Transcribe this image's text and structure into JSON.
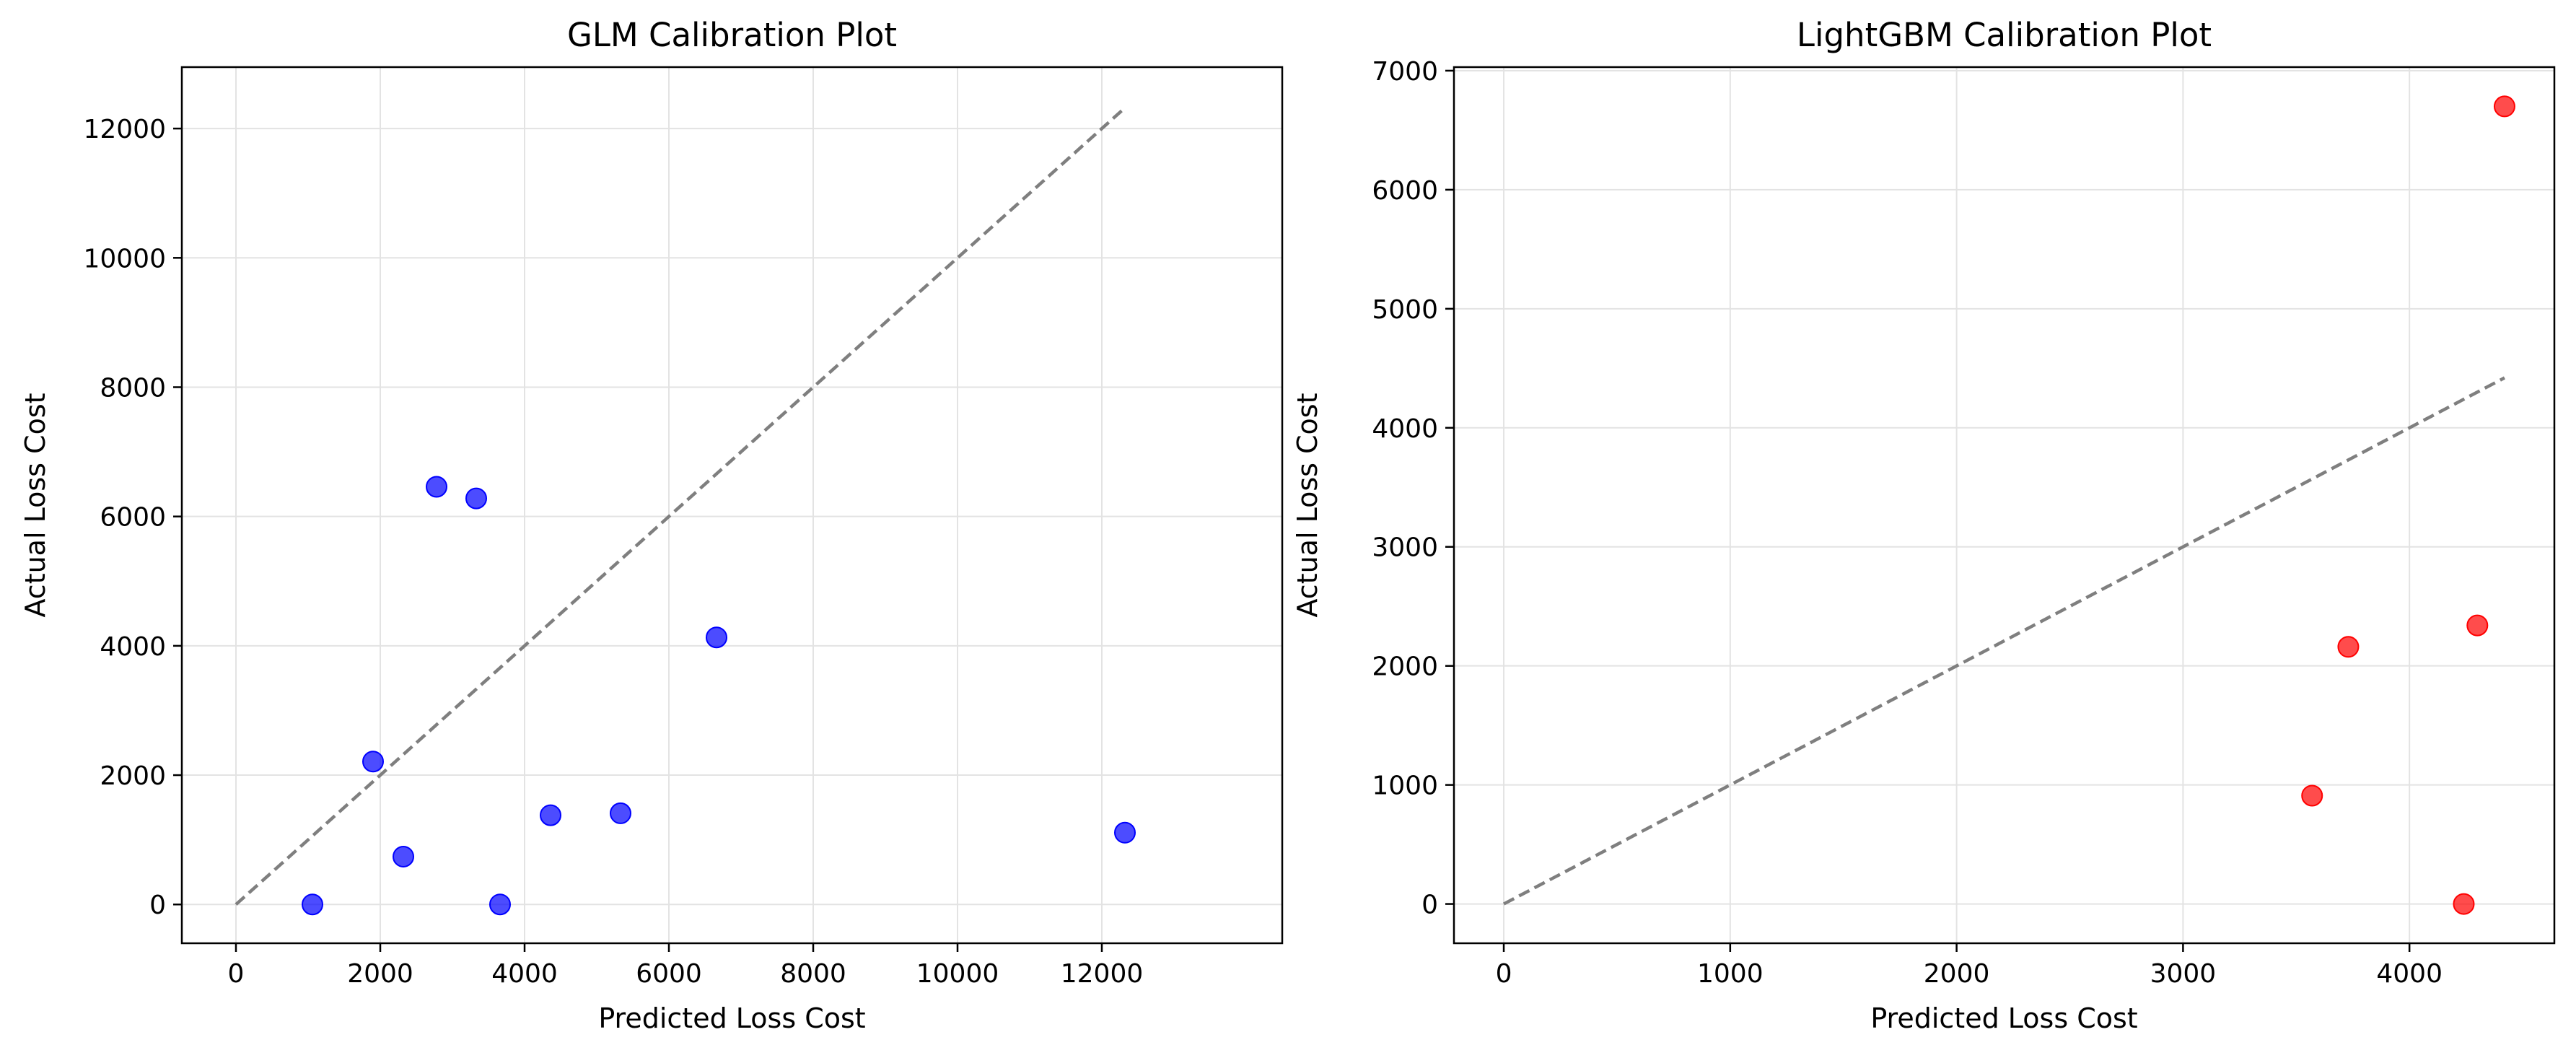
{
  "chart_data": [
    {
      "type": "scatter",
      "title": "GLM Calibration Plot",
      "xlabel": "Predicted Loss Cost",
      "ylabel": "Actual Loss Cost",
      "xlim": [
        -750,
        14500
      ],
      "ylim": [
        -600,
        12950
      ],
      "xticks": [
        0,
        2000,
        4000,
        6000,
        8000,
        10000,
        12000
      ],
      "yticks": [
        0,
        2000,
        4000,
        6000,
        8000,
        10000,
        12000
      ],
      "grid": true,
      "reference_line": {
        "x": [
          0,
          12320
        ],
        "y": [
          0,
          12320
        ]
      },
      "point_color": "#0000ff",
      "line_color": "#7f7f7f",
      "points": [
        {
          "x": 1060,
          "y": 0
        },
        {
          "x": 1900,
          "y": 2210
        },
        {
          "x": 2320,
          "y": 740
        },
        {
          "x": 2780,
          "y": 6460
        },
        {
          "x": 3330,
          "y": 6280
        },
        {
          "x": 3660,
          "y": 0
        },
        {
          "x": 4360,
          "y": 1380
        },
        {
          "x": 5330,
          "y": 1410
        },
        {
          "x": 6660,
          "y": 4130
        },
        {
          "x": 12320,
          "y": 1110
        }
      ]
    },
    {
      "type": "scatter",
      "title": "LightGBM Calibration Plot",
      "xlabel": "Predicted Loss Cost",
      "ylabel": "Actual Loss Cost",
      "xlim": [
        -220,
        4640
      ],
      "ylim": [
        -330,
        7030
      ],
      "xticks": [
        0,
        1000,
        2000,
        3000,
        4000
      ],
      "yticks": [
        0,
        1000,
        2000,
        3000,
        4000,
        5000,
        6000,
        7000
      ],
      "grid": true,
      "reference_line": {
        "x": [
          0,
          4420
        ],
        "y": [
          0,
          4420
        ]
      },
      "point_color": "#ff0000",
      "line_color": "#7f7f7f",
      "points": [
        {
          "x": 3570,
          "y": 910
        },
        {
          "x": 3730,
          "y": 2160
        },
        {
          "x": 4240,
          "y": 0
        },
        {
          "x": 4300,
          "y": 2340
        },
        {
          "x": 4420,
          "y": 6700
        }
      ]
    }
  ]
}
